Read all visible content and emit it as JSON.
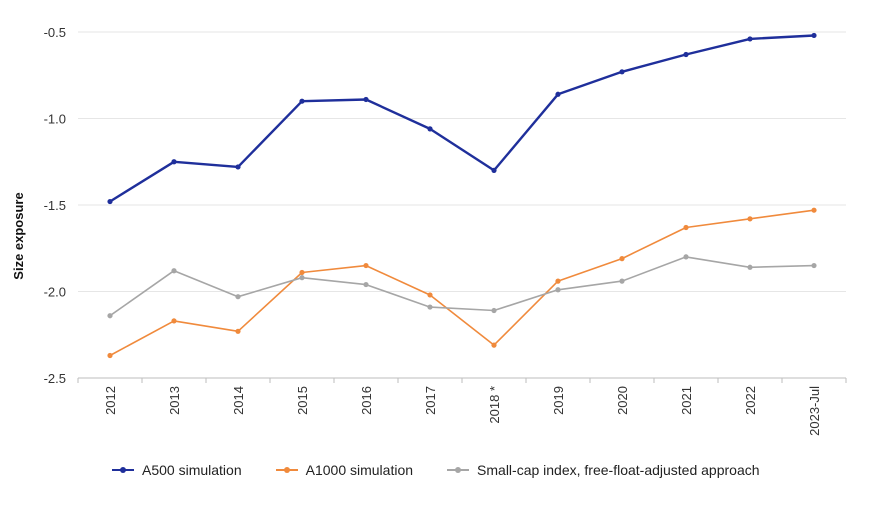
{
  "chart_data": {
    "type": "line",
    "title": "",
    "xlabel": "",
    "ylabel": "Size exposure",
    "ylim": [
      -2.5,
      -0.5
    ],
    "yticks": [
      -0.5,
      -1.0,
      -1.5,
      -2.0,
      -2.5
    ],
    "ytick_labels": [
      "-0.5",
      "-1.0",
      "-1.5",
      "-2.0",
      "-2.5"
    ],
    "grid": true,
    "legend_position": "bottom",
    "categories": [
      "2012",
      "2013",
      "2014",
      "2015",
      "2016",
      "2017",
      "2018 *",
      "2019",
      "2020",
      "2021",
      "2022",
      "2023-Jul"
    ],
    "series": [
      {
        "name": "A500 simulation",
        "color": "#1f2f9b",
        "values": [
          -1.48,
          -1.25,
          -1.28,
          -0.9,
          -0.89,
          -1.06,
          -1.3,
          -0.86,
          -0.73,
          -0.63,
          -0.54,
          -0.52
        ]
      },
      {
        "name": "A1000 simulation",
        "color": "#f08a3c",
        "values": [
          -2.37,
          -2.17,
          -2.23,
          -1.89,
          -1.85,
          -2.02,
          -2.31,
          -1.94,
          -1.81,
          -1.63,
          -1.58,
          -1.53
        ]
      },
      {
        "name": "Small-cap index, free-float-adjusted approach",
        "color": "#a6a6a6",
        "values": [
          -2.14,
          -1.88,
          -2.03,
          -1.92,
          -1.96,
          -2.09,
          -2.11,
          -1.99,
          -1.94,
          -1.8,
          -1.86,
          -1.85
        ]
      }
    ]
  }
}
